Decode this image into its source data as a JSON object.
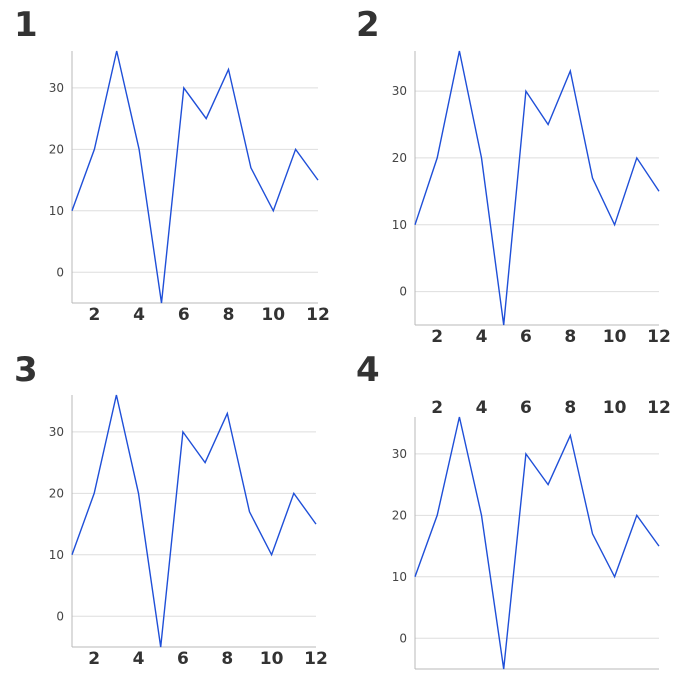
{
  "chart_data": [
    {
      "panel_label": "1",
      "type": "line",
      "x": [
        1,
        2,
        3,
        4,
        5,
        6,
        7,
        8,
        9,
        10,
        11,
        12
      ],
      "series": [
        {
          "values": [
            10,
            20,
            36,
            20,
            -5,
            30,
            25,
            33,
            17,
            10,
            20,
            15
          ],
          "color": "#1f4fd8"
        }
      ],
      "xticks": [
        "2",
        "4",
        "6",
        "8",
        "10",
        "12"
      ],
      "yticks": [
        "0",
        "10",
        "20",
        "30"
      ],
      "xlim": [
        1,
        12
      ],
      "ylim": [
        -5,
        36
      ],
      "x_axis_position": "bottom",
      "grid": "horizontal"
    },
    {
      "panel_label": "2",
      "type": "line",
      "x": [
        1,
        2,
        3,
        4,
        5,
        6,
        7,
        8,
        9,
        10,
        11,
        12
      ],
      "series": [
        {
          "values": [
            10,
            20,
            36,
            20,
            -5,
            30,
            25,
            33,
            17,
            10,
            20,
            15
          ],
          "color": "#1f4fd8"
        }
      ],
      "xticks": [
        "2",
        "4",
        "6",
        "8",
        "10",
        "12"
      ],
      "yticks": [
        "0",
        "10",
        "20",
        "30"
      ],
      "xlim": [
        1,
        12
      ],
      "ylim": [
        -5,
        36
      ],
      "x_axis_position": "bottom",
      "grid": "horizontal"
    },
    {
      "panel_label": "3",
      "type": "line",
      "x": [
        1,
        2,
        3,
        4,
        5,
        6,
        7,
        8,
        9,
        10,
        11,
        12
      ],
      "series": [
        {
          "values": [
            10,
            20,
            36,
            20,
            -5,
            30,
            25,
            33,
            17,
            10,
            20,
            15
          ],
          "color": "#1f4fd8"
        }
      ],
      "xticks": [
        "2",
        "4",
        "6",
        "8",
        "10",
        "12"
      ],
      "yticks": [
        "0",
        "10",
        "20",
        "30"
      ],
      "xlim": [
        1,
        12
      ],
      "ylim": [
        -5,
        36
      ],
      "x_axis_position": "bottom",
      "grid": "horizontal"
    },
    {
      "panel_label": "4",
      "type": "line",
      "x": [
        1,
        2,
        3,
        4,
        5,
        6,
        7,
        8,
        9,
        10,
        11,
        12
      ],
      "series": [
        {
          "values": [
            10,
            20,
            36,
            20,
            -5,
            30,
            25,
            33,
            17,
            10,
            20,
            15
          ],
          "color": "#1f4fd8"
        }
      ],
      "xticks": [
        "2",
        "4",
        "6",
        "8",
        "10",
        "12"
      ],
      "yticks": [
        "0",
        "10",
        "20",
        "30"
      ],
      "xlim": [
        1,
        12
      ],
      "ylim": [
        -5,
        36
      ],
      "x_axis_position": "top",
      "grid": "horizontal"
    }
  ]
}
